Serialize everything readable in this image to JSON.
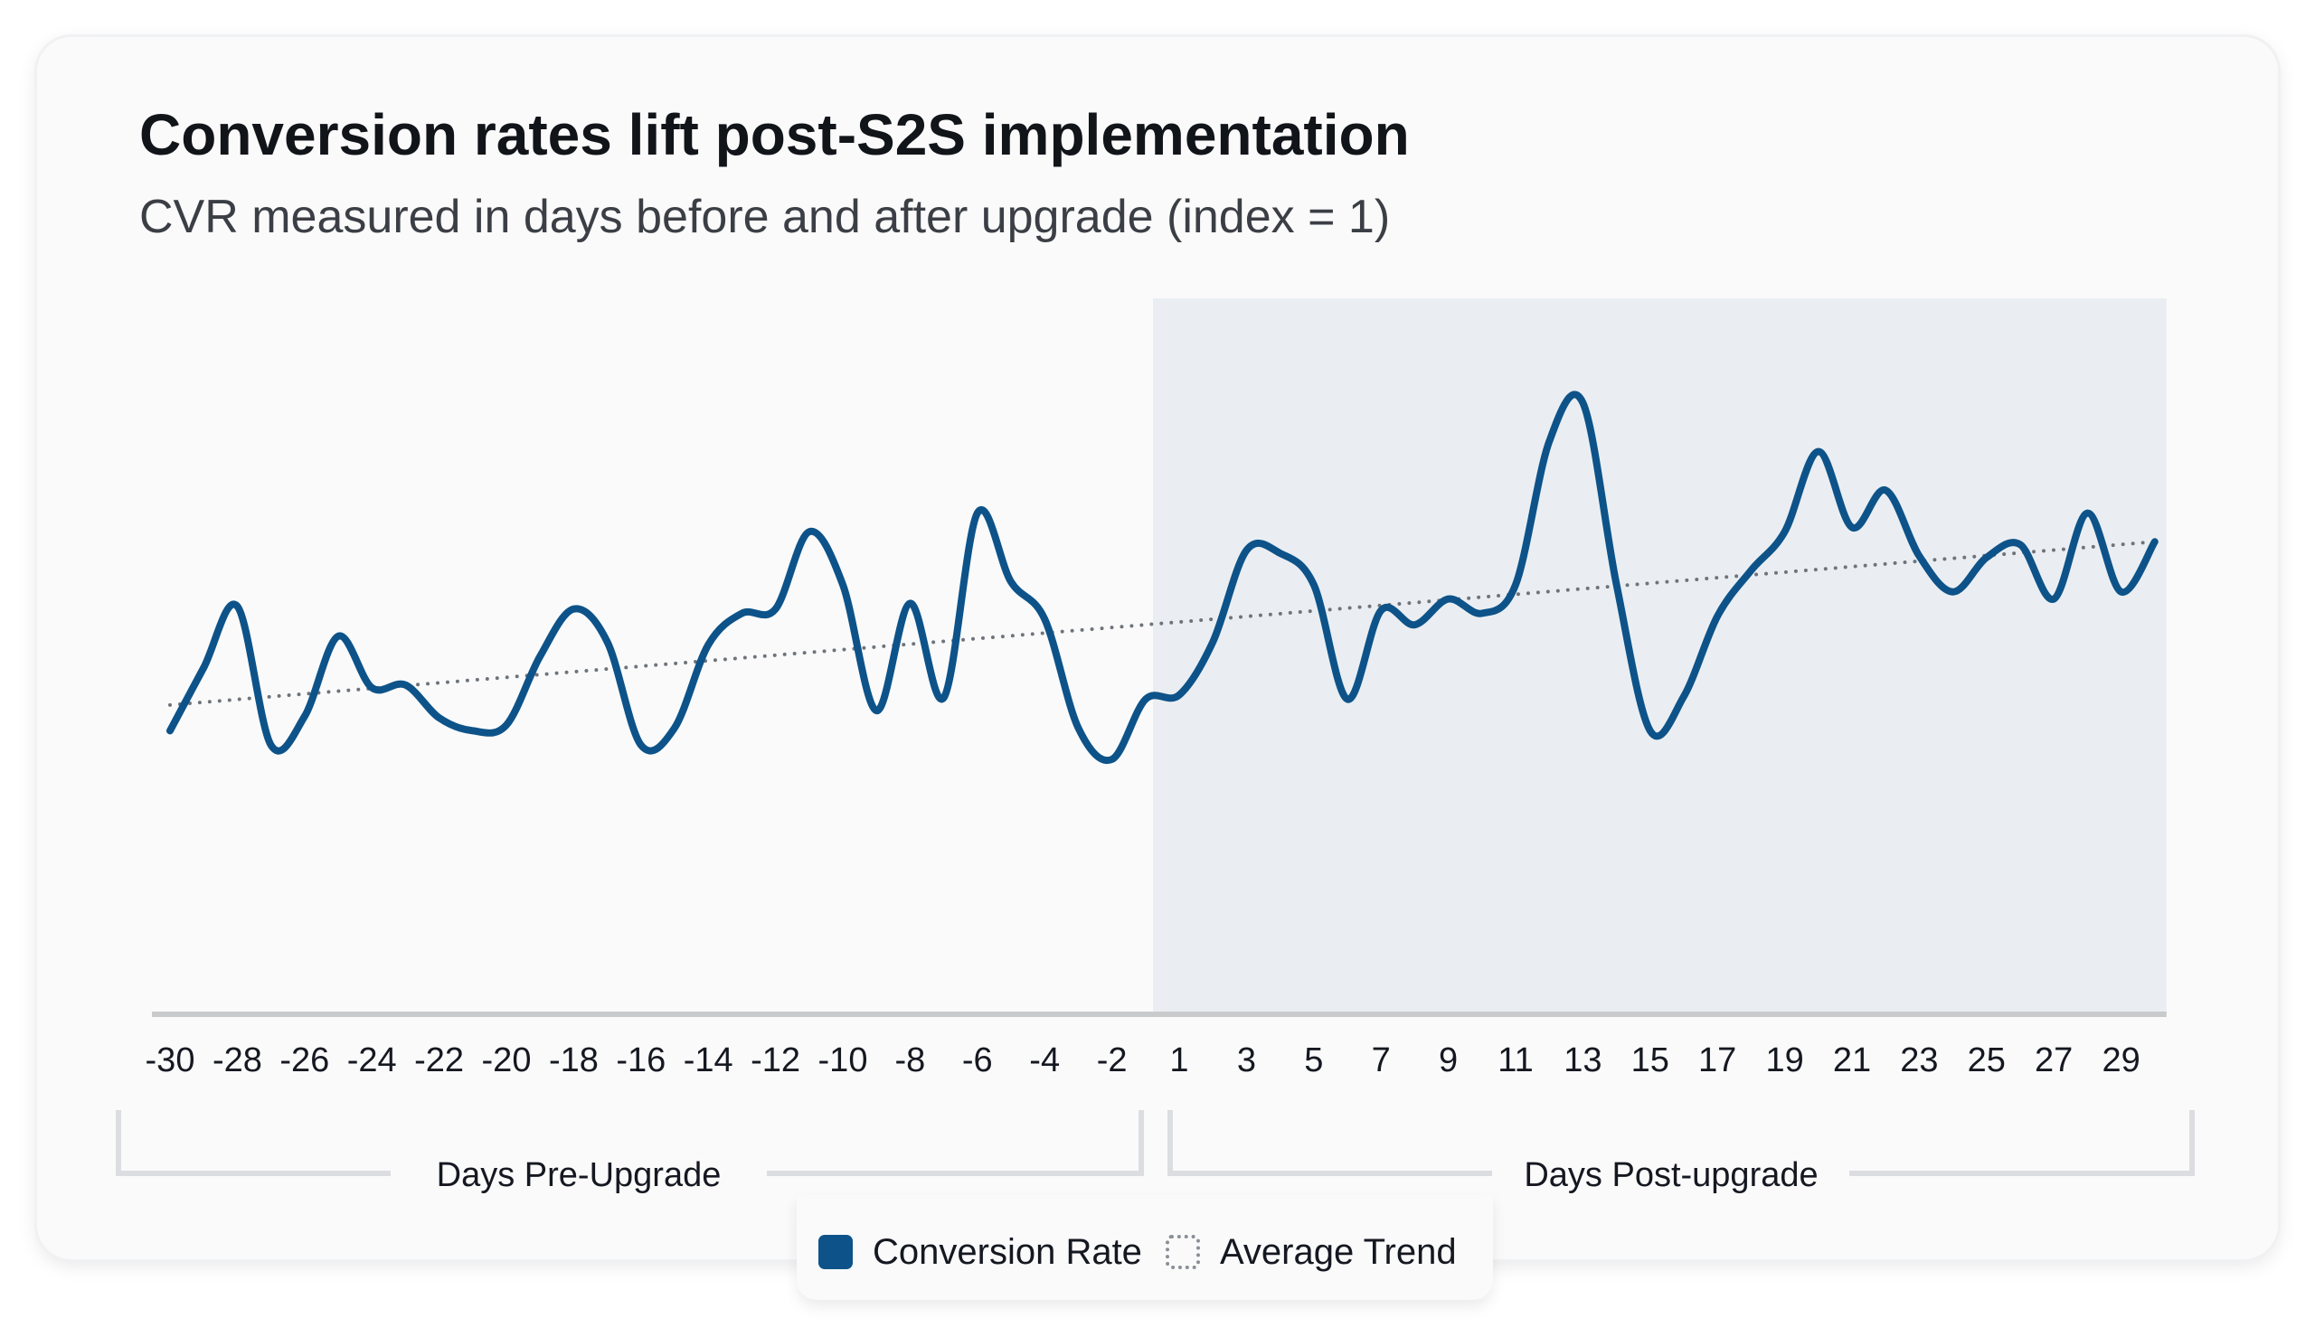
{
  "title": "Conversion rates lift post-S2S implementation",
  "subtitle": "CVR measured in days before and after upgrade (index = 1)",
  "legend": {
    "conversion": "Conversion Rate",
    "trend": "Average Trend"
  },
  "colors": {
    "line": "#0d5389",
    "trend": "#6f747b",
    "post_shade": "#eaeef2",
    "axis": "#c9cacc",
    "bracket": "#dcdde0"
  },
  "chart_data": {
    "type": "line",
    "title": "Conversion rates lift post-S2S implementation",
    "subtitle": "CVR measured in days before and after upgrade (index = 1)",
    "tick_labels": [
      "-30",
      "-28",
      "-26",
      "-24",
      "-22",
      "-20",
      "-18",
      "-16",
      "-14",
      "-12",
      "-10",
      "-8",
      "-6",
      "-4",
      "-2",
      "1",
      "3",
      "5",
      "7",
      "9",
      "11",
      "13",
      "15",
      "17",
      "19",
      "21",
      "23",
      "25",
      "27",
      "29"
    ],
    "groups": [
      {
        "label": "Days Pre-Upgrade",
        "range": [
          "-30",
          "-1"
        ]
      },
      {
        "label": "Days Post-upgrade",
        "range": [
          "1",
          "30"
        ]
      }
    ],
    "shaded_region": {
      "from": "1",
      "to": "30",
      "label": "Days Post-upgrade"
    },
    "y_axis_visible": false,
    "ylim": [
      0.9,
      1.4
    ],
    "grid": false,
    "legend_position": "bottom-center",
    "series": [
      {
        "name": "Conversion Rate",
        "style": "solid",
        "x": [
          "-30",
          "-29",
          "-28",
          "-27",
          "-26",
          "-25",
          "-24",
          "-23",
          "-22",
          "-21",
          "-20",
          "-19",
          "-18",
          "-17",
          "-16",
          "-15",
          "-14",
          "-13",
          "-12",
          "-11",
          "-10",
          "-9",
          "-8",
          "-7",
          "-6",
          "-5",
          "-4",
          "-3",
          "-2",
          "-1",
          "1",
          "2",
          "3",
          "4",
          "5",
          "6",
          "7",
          "8",
          "9",
          "10",
          "11",
          "12",
          "13",
          "14",
          "15",
          "16",
          "17",
          "18",
          "19",
          "20",
          "21",
          "22",
          "23",
          "24",
          "25",
          "26",
          "27",
          "28",
          "29",
          "30"
        ],
        "values": [
          1.098,
          1.142,
          1.185,
          1.088,
          1.108,
          1.164,
          1.128,
          1.13,
          1.107,
          1.098,
          1.102,
          1.15,
          1.183,
          1.16,
          1.088,
          1.1,
          1.158,
          1.18,
          1.183,
          1.237,
          1.2,
          1.112,
          1.187,
          1.121,
          1.25,
          1.202,
          1.176,
          1.1,
          1.078,
          1.12,
          1.123,
          1.16,
          1.224,
          1.222,
          1.2,
          1.12,
          1.182,
          1.172,
          1.19,
          1.18,
          1.2,
          1.3,
          1.327,
          1.2,
          1.098,
          1.122,
          1.178,
          1.21,
          1.237,
          1.293,
          1.24,
          1.266,
          1.22,
          1.195,
          1.219,
          1.228,
          1.19,
          1.25,
          1.195,
          1.23
        ]
      },
      {
        "name": "Average Trend",
        "style": "dotted",
        "x": [
          "-30",
          "30"
        ],
        "values": [
          1.116,
          1.23
        ]
      }
    ]
  }
}
